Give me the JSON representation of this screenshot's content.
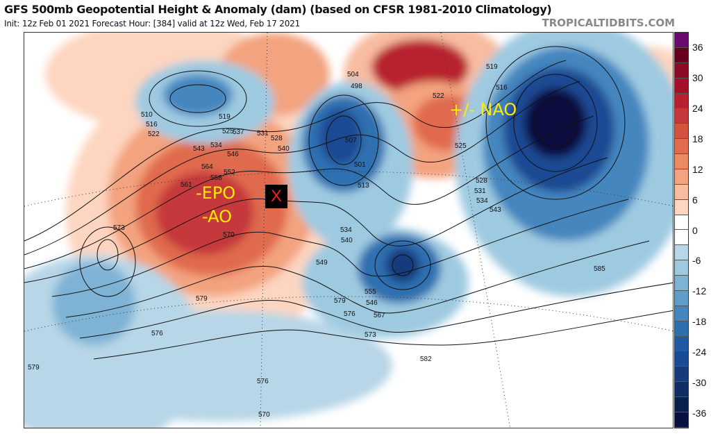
{
  "header": {
    "title": "GFS 500mb Geopotential Height & Anomaly (dam) (based on CFSR 1981-2010 Climatology)",
    "subtitle": "Init: 12z Feb 01 2021   Forecast Hour: [384]   valid at 12z Wed, Feb 17 2021",
    "brand": "TROPICALTIDBITS.COM"
  },
  "colorbar": {
    "ticks": [
      "36",
      "30",
      "24",
      "18",
      "12",
      "6",
      "0",
      "-6",
      "-12",
      "-18",
      "-24",
      "-30",
      "-36"
    ],
    "colors": [
      "#6a0a6e",
      "#67001f",
      "#8b0b25",
      "#a50f2a",
      "#b8202d",
      "#c5373a",
      "#d3533e",
      "#e06b4d",
      "#ec8a63",
      "#f3a37f",
      "#f8bca0",
      "#fdd5c0",
      "#ffffff",
      "#ffffff",
      "#b7d6e7",
      "#9ecae1",
      "#7fb3d5",
      "#5f9ec9",
      "#4586bf",
      "#2e6fb0",
      "#2159a3",
      "#1a4a93",
      "#163b7c",
      "#102c63",
      "#0b1f4b",
      "#08103f"
    ]
  },
  "annotations": {
    "x_marker": "X",
    "epo": "-EPO",
    "ao": "-AO",
    "nao": "+/- NAO"
  },
  "contour_labels": [
    "510",
    "516",
    "522",
    "519",
    "525",
    "528",
    "531",
    "537",
    "534",
    "540",
    "543",
    "546",
    "552",
    "558",
    "561",
    "564",
    "570",
    "573",
    "576",
    "579",
    "582",
    "585",
    "504",
    "498",
    "501",
    "507",
    "513",
    "549",
    "555",
    "567",
    "534",
    "540",
    "519",
    "516",
    "522",
    "525",
    "528",
    "531",
    "534",
    "543",
    "546",
    "573",
    "576",
    "579",
    "579",
    "576",
    "570"
  ]
}
